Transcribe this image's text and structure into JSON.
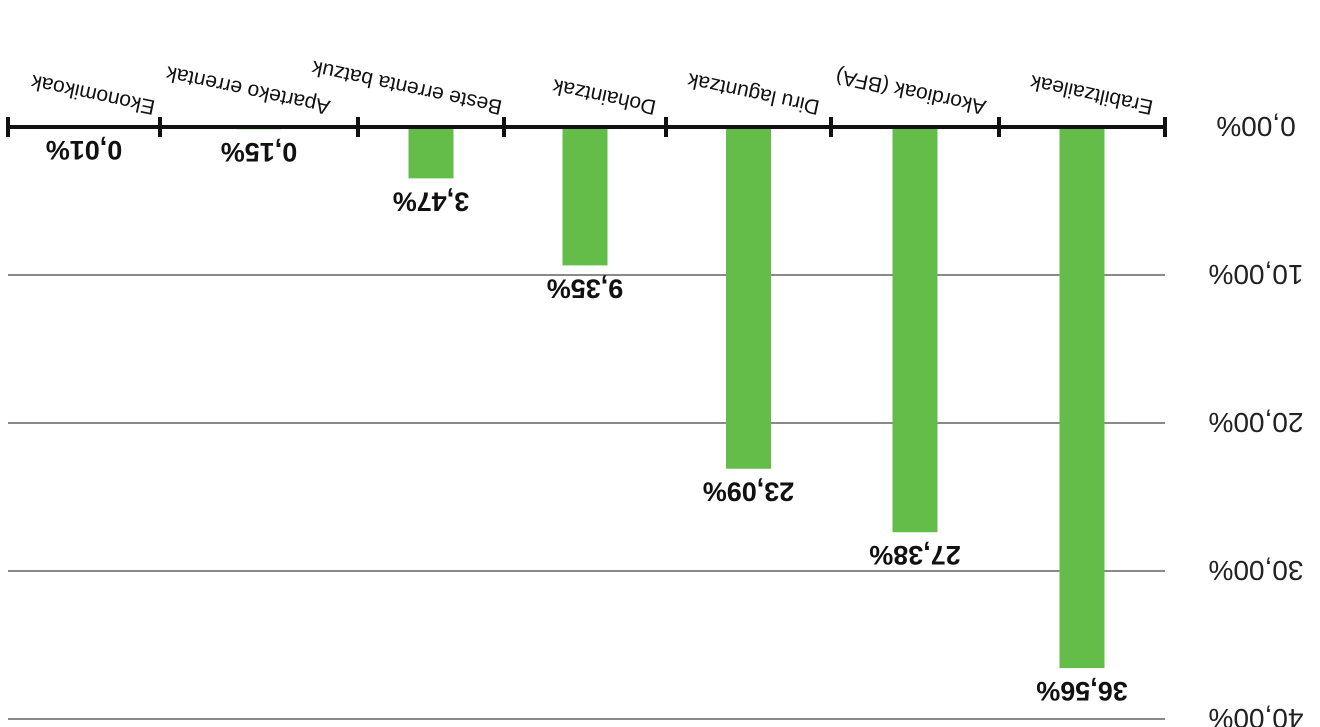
{
  "chart_data": {
    "type": "bar",
    "orientation": "rotated-180",
    "categories": [
      "Ekonomikoak",
      "Aparteko errentak",
      "Beste errenta batzuk",
      "Dohaintzak",
      "Diru laguntzak",
      "Akordioak (BFA)",
      "Erabiltzaileak"
    ],
    "values": [
      0.01,
      0.15,
      3.47,
      9.35,
      23.09,
      27.38,
      36.56
    ],
    "value_labels": [
      "0,01%",
      "0,15%",
      "3,47%",
      "9,35%",
      "23,09%",
      "27,38%",
      "36,56%"
    ],
    "y_ticks": [
      0,
      10,
      20,
      30,
      40
    ],
    "y_tick_labels": [
      "0,00%",
      "10,00%",
      "20,00%",
      "30,00%",
      "40,00%"
    ],
    "ylim": [
      0,
      40
    ],
    "grid": true,
    "bar_color": "#63bd48",
    "title": "",
    "xlabel": "",
    "ylabel": ""
  }
}
